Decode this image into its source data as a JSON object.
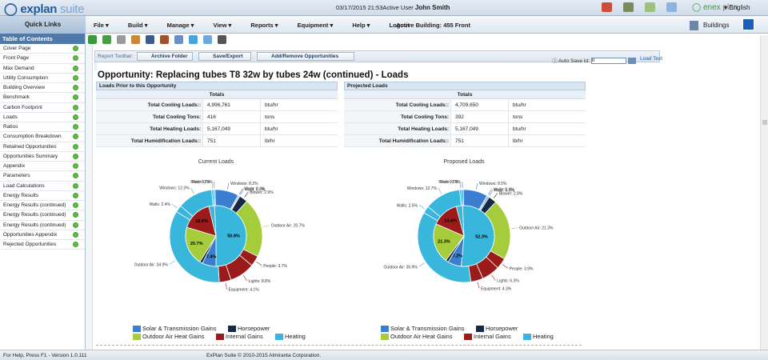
{
  "app": {
    "logo_main": "explan",
    "logo_suite": " suite",
    "datetime": "03/17/2015 21:53",
    "user_prefix": "Active User",
    "user_name": "John Smith",
    "brand_enex": "enex",
    "brand_plan": " plan",
    "language": "English"
  },
  "menubar": {
    "quick_links": "Quick Links",
    "menus": [
      "File ▾",
      "Build ▾",
      "Manage ▾",
      "View ▾",
      "Reports ▾",
      "Equipment ▾",
      "Help ▾",
      "Logout"
    ],
    "active_building_label": "Active Building:",
    "active_building": "455 Front",
    "buildings": "Buildings"
  },
  "sidebar": {
    "header": "Table of Contents",
    "items": [
      "Cover Page",
      "Front Page",
      "Max Demand",
      "Utility Consumption",
      "Building Overview",
      "Benchmark",
      "Carbon Footprint",
      "Loads",
      "Ratios",
      "Consumption Breakdown",
      "Retained Opportunities",
      "Opportunities Summary",
      "Appendix",
      "Parameters",
      "Load Calculations",
      "Energy Results",
      "Energy Results (continued)",
      "Energy Results (continued)",
      "Energy Results (continued)",
      "Opportunities Appendix",
      "Rejected Opportunities"
    ]
  },
  "report_toolbar": {
    "label": "Report Toolbar:",
    "archive": "Archive Folder",
    "save_export": "Save/Export",
    "add_remove": "Add/Remove Opportunities",
    "auto_save": "Auto Save Id:",
    "auto_save_value": "0",
    "load_text": "Load Text"
  },
  "opportunity": {
    "title": "Opportunity:  Replacing tubes T8 32w  by  tubes 24w (continued) - Loads"
  },
  "prior": {
    "header": "Loads Prior to this Opportunity",
    "totals": "Totals",
    "rows": [
      {
        "label": "Total Cooling Loads::",
        "value": "4,996,761",
        "unit": "btu/hr"
      },
      {
        "label": "Total Cooling Tons:",
        "value": "416",
        "unit": "tons"
      },
      {
        "label": "Total Heating Loads:",
        "value": "5,167,049",
        "unit": "btu/hr"
      },
      {
        "label": "Total Humidification Loads::",
        "value": "751",
        "unit": "lb/hr"
      }
    ]
  },
  "projected": {
    "header": "Projected Loads",
    "totals": "Totals",
    "rows": [
      {
        "label": "Total Cooling Loads::",
        "value": "4,709,650",
        "unit": "btu/hr"
      },
      {
        "label": "Total Cooling Tons:",
        "value": "392",
        "unit": "tons"
      },
      {
        "label": "Total Heating Loads:",
        "value": "5,167,049",
        "unit": "btu/hr"
      },
      {
        "label": "Total Humidification Loads::",
        "value": "751",
        "unit": "lb/hr"
      }
    ]
  },
  "legend": {
    "items": [
      "Solar & Transmission Gains",
      "Horsepower",
      "Outdoor Air Heat Gains",
      "Internal Gains",
      "Heating"
    ],
    "colors": [
      "#3a7fcf",
      "#152a44",
      "#a5cc3b",
      "#9b1b1b",
      "#38b6dc"
    ]
  },
  "status": {
    "help": "For Help, Press F1 - Version 1.0.111",
    "copyright": "ExPlan Suite © 2010-2015 Almiranta Corporation."
  },
  "chart_data": [
    {
      "type": "pie",
      "title": "Current Loads",
      "inner_ring": [
        {
          "label": "",
          "value": 50.8,
          "shown": "50.8%",
          "color": "#38b6dc"
        },
        {
          "label": "",
          "value": 7.4,
          "shown": "7.4%",
          "color": "#3a7fcf"
        },
        {
          "label": "",
          "value": 1.5,
          "shown": "",
          "color": "#152a44"
        },
        {
          "label": "",
          "value": 20.7,
          "shown": "20.7%",
          "color": "#a5cc3b"
        },
        {
          "label": "",
          "value": 16.6,
          "shown": "16.6%",
          "color": "#9b1b1b"
        },
        {
          "label": "",
          "value": 3.0,
          "shown": "",
          "color": "#38b6dc"
        }
      ],
      "outer_ring": [
        {
          "label": "Floor",
          "value": 0.5,
          "color": "#3a7fcf"
        },
        {
          "label": "Windows",
          "value": 8.2,
          "color": "#3a7fcf"
        },
        {
          "label": "Walls",
          "value": 0.4,
          "color": "#3a7fcf"
        },
        {
          "label": "Roof",
          "value": 0.3,
          "color": "#3a7fcf"
        },
        {
          "label": "Blower",
          "value": 2.9,
          "color": "#152a44"
        },
        {
          "label": "Outdoor Air",
          "value": 20.7,
          "color": "#a5cc3b"
        },
        {
          "label": "People",
          "value": 3.7,
          "color": "#9b1b1b"
        },
        {
          "label": "Lights",
          "value": 8.8,
          "color": "#9b1b1b"
        },
        {
          "label": "Equipment",
          "value": 4.1,
          "color": "#9b1b1b"
        },
        {
          "label": "Outdoor Air",
          "value": 34.9,
          "color": "#38b6dc"
        },
        {
          "label": "Walls",
          "value": 2.4,
          "color": "#38b6dc"
        },
        {
          "label": "Windows",
          "value": 12.3,
          "color": "#38b6dc"
        },
        {
          "label": "Roof",
          "value": 0.7,
          "color": "#38b6dc"
        }
      ]
    },
    {
      "type": "pie",
      "title": "Proposed Loads",
      "inner_ring": [
        {
          "label": "",
          "value": 52.3,
          "shown": "52.3%",
          "color": "#38b6dc"
        },
        {
          "label": "",
          "value": 7.2,
          "shown": "7.2%",
          "color": "#3a7fcf"
        },
        {
          "label": "",
          "value": 1.5,
          "shown": "",
          "color": "#152a44"
        },
        {
          "label": "",
          "value": 21.3,
          "shown": "21.3%",
          "color": "#a5cc3b"
        },
        {
          "label": "",
          "value": 14.4,
          "shown": "14.4%",
          "color": "#9b1b1b"
        },
        {
          "label": "",
          "value": 3.3,
          "shown": "",
          "color": "#38b6dc"
        }
      ],
      "outer_ring": [
        {
          "label": "Floor",
          "value": 0.6,
          "color": "#3a7fcf"
        },
        {
          "label": "Windows",
          "value": 8.5,
          "color": "#3a7fcf"
        },
        {
          "label": "Walls",
          "value": 0.4,
          "color": "#3a7fcf"
        },
        {
          "label": "Roof",
          "value": 0.5,
          "color": "#3a7fcf"
        },
        {
          "label": "Blower",
          "value": 2.8,
          "color": "#152a44"
        },
        {
          "label": "Outdoor Air",
          "value": 21.3,
          "color": "#a5cc3b"
        },
        {
          "label": "People",
          "value": 3.9,
          "color": "#9b1b1b"
        },
        {
          "label": "Lights",
          "value": 6.3,
          "color": "#9b1b1b"
        },
        {
          "label": "Equipment",
          "value": 4.3,
          "color": "#9b1b1b"
        },
        {
          "label": "Outdoor Air",
          "value": 35.9,
          "color": "#38b6dc"
        },
        {
          "label": "Walls",
          "value": 2.5,
          "color": "#38b6dc"
        },
        {
          "label": "Windows",
          "value": 12.7,
          "color": "#38b6dc"
        },
        {
          "label": "Roof",
          "value": 0.7,
          "color": "#38b6dc"
        }
      ]
    }
  ]
}
